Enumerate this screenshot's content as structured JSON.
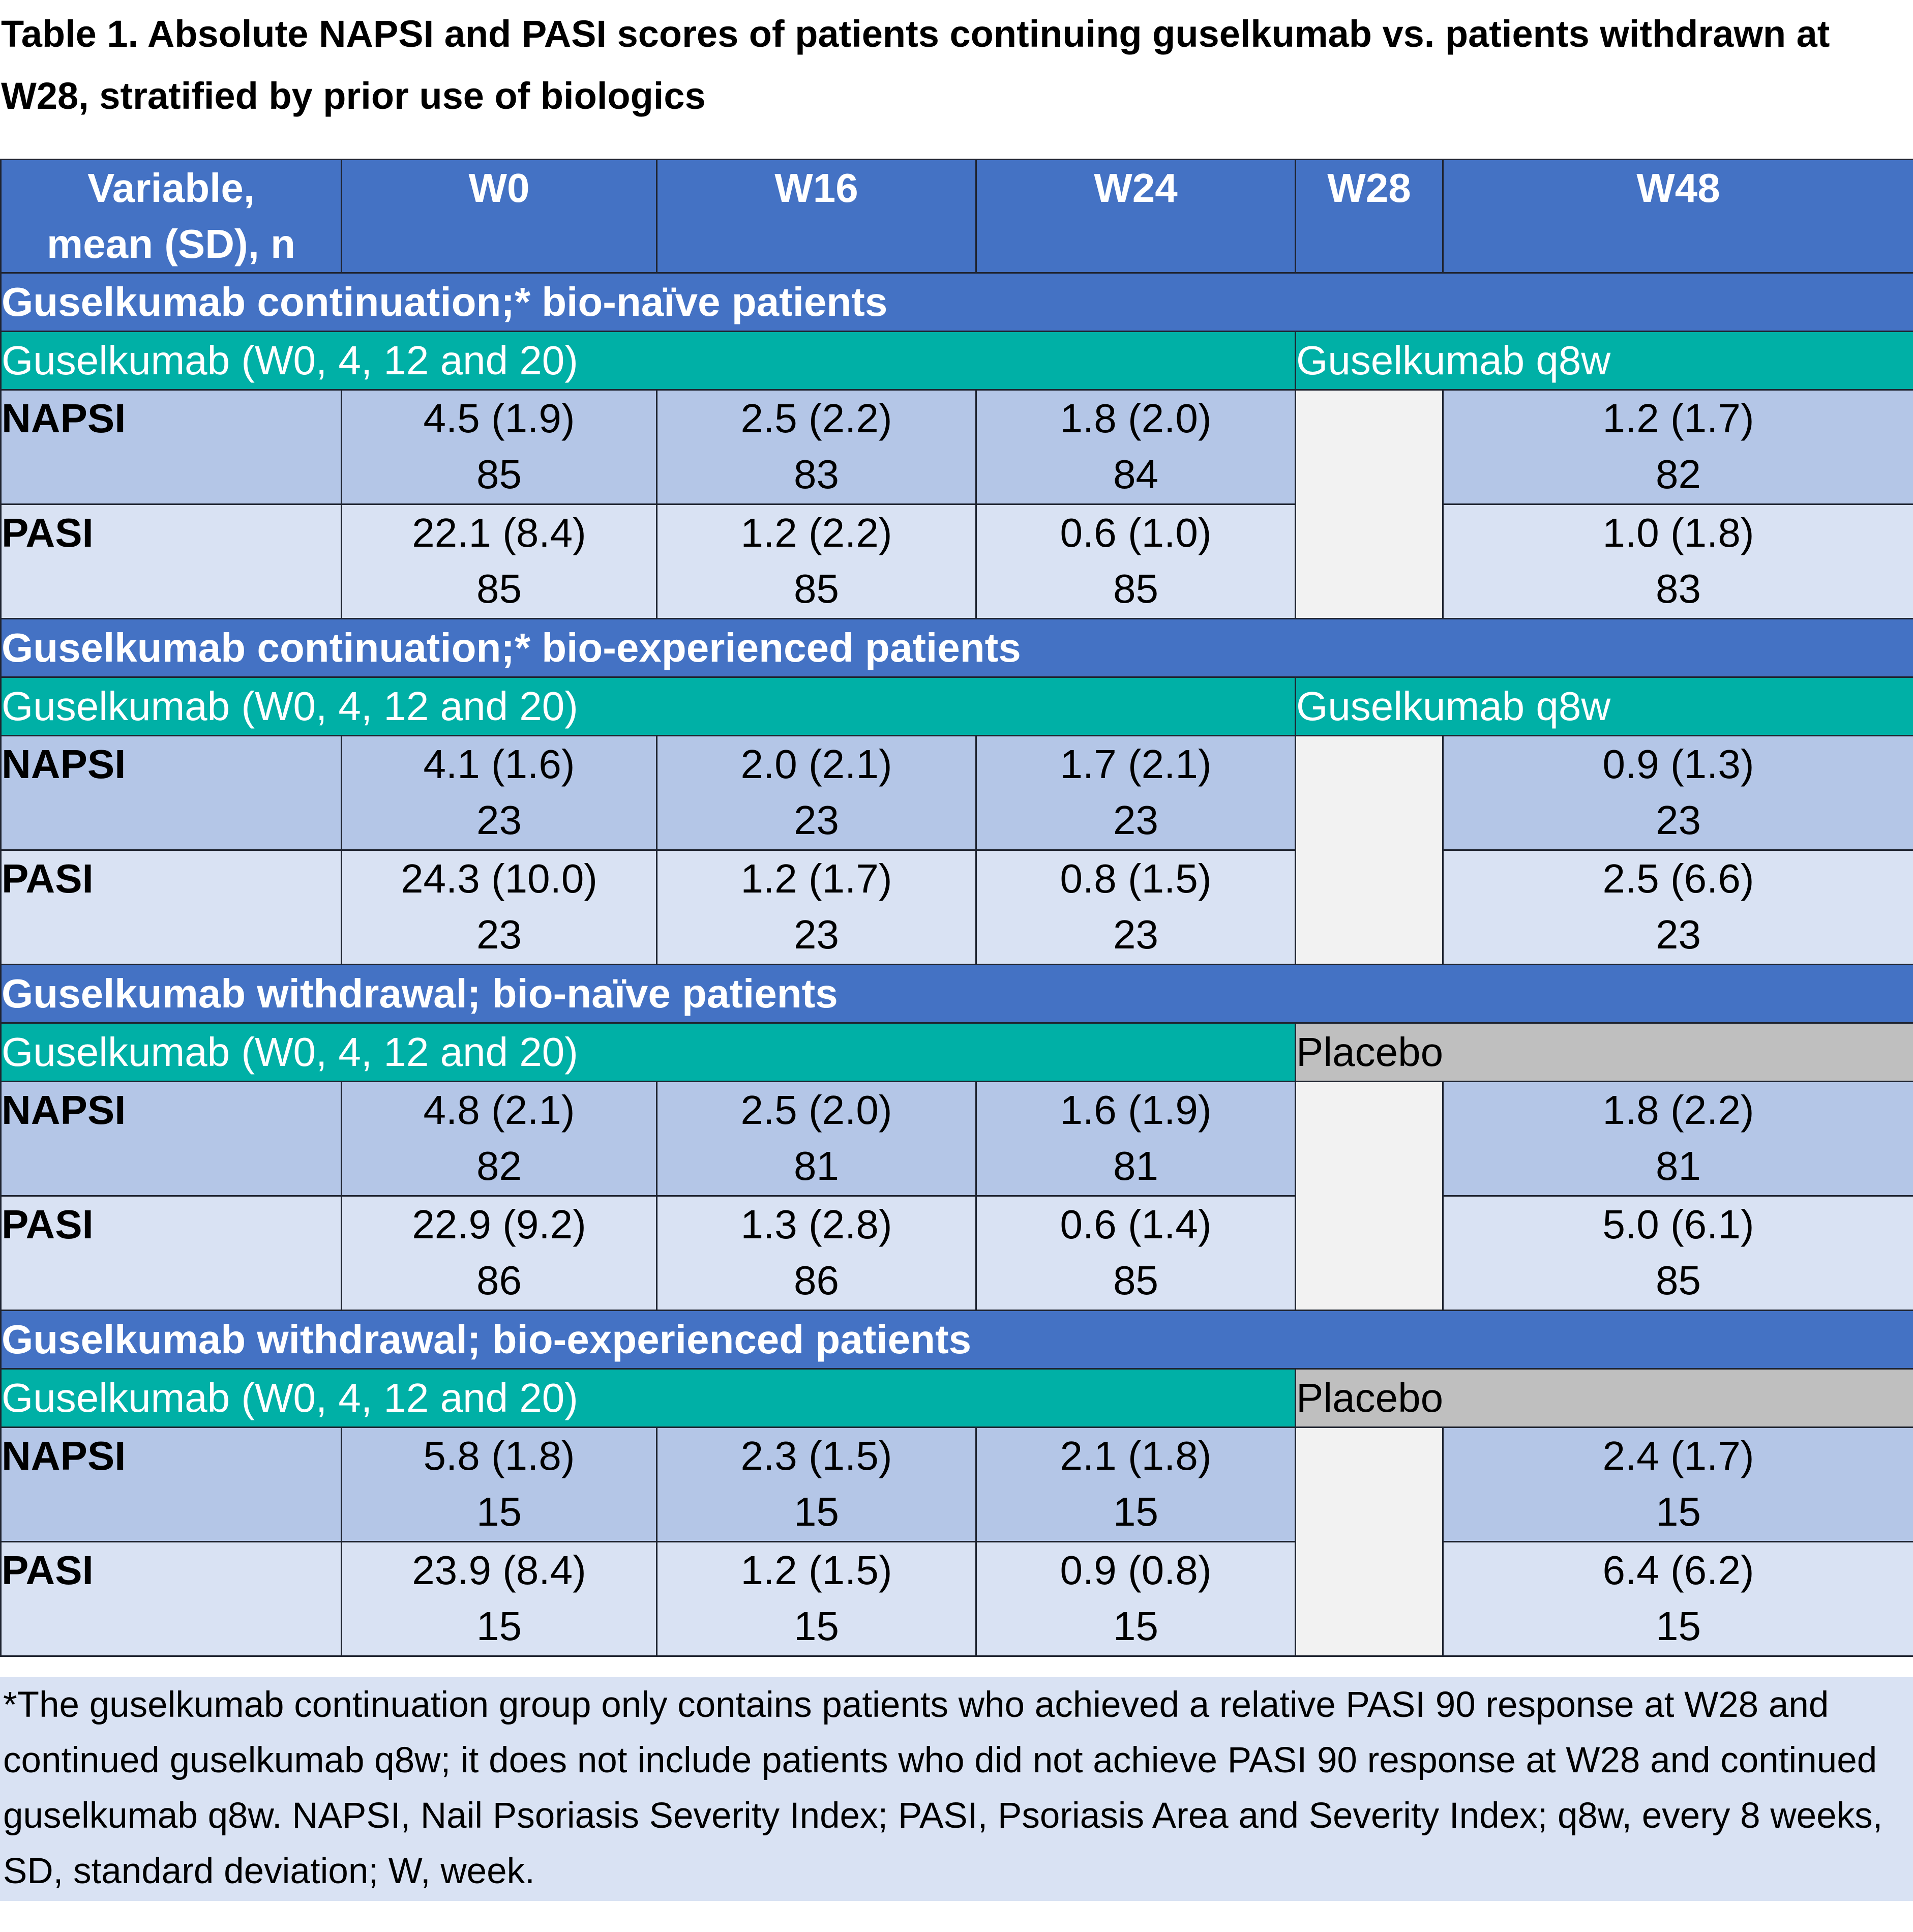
{
  "title": "Table 1. Absolute NAPSI and PASI scores of patients continuing guselkumab vs. patients withdrawn at W28, stratified by prior use of biologics",
  "columns": {
    "variable": [
      "Variable,",
      "mean (SD), n"
    ],
    "w0": "W0",
    "w16": "W16",
    "w24": "W24",
    "w28": "W28",
    "w48": "W48"
  },
  "sections": [
    {
      "header": "Guselkumab continuation;* bio-naïve patients",
      "treatment_left": "Guselkumab (W0, 4, 12 and 20)",
      "treatment_right": "Guselkumab q8w",
      "rows": [
        {
          "label": "NAPSI",
          "w0": [
            "4.5 (1.9)",
            "85"
          ],
          "w16": [
            "2.5 (2.2)",
            "83"
          ],
          "w24": [
            "1.8 (2.0)",
            "84"
          ],
          "w48": [
            "1.2 (1.7)",
            "82"
          ]
        },
        {
          "label": "PASI",
          "w0": [
            "22.1 (8.4)",
            "85"
          ],
          "w16": [
            "1.2 (2.2)",
            "85"
          ],
          "w24": [
            "0.6 (1.0)",
            "85"
          ],
          "w48": [
            "1.0 (1.8)",
            "83"
          ]
        }
      ]
    },
    {
      "header": "Guselkumab continuation;* bio-experienced patients",
      "treatment_left": "Guselkumab (W0, 4, 12 and 20)",
      "treatment_right": "Guselkumab q8w",
      "rows": [
        {
          "label": "NAPSI",
          "w0": [
            "4.1 (1.6)",
            "23"
          ],
          "w16": [
            "2.0 (2.1)",
            "23"
          ],
          "w24": [
            "1.7 (2.1)",
            "23"
          ],
          "w48": [
            "0.9 (1.3)",
            "23"
          ]
        },
        {
          "label": "PASI",
          "w0": [
            "24.3 (10.0)",
            "23"
          ],
          "w16": [
            "1.2 (1.7)",
            "23"
          ],
          "w24": [
            "0.8 (1.5)",
            "23"
          ],
          "w48": [
            "2.5 (6.6)",
            "23"
          ]
        }
      ]
    },
    {
      "header": "Guselkumab withdrawal; bio-naïve patients",
      "treatment_left": "Guselkumab (W0, 4, 12 and 20)",
      "treatment_right": "Placebo",
      "rows": [
        {
          "label": "NAPSI",
          "w0": [
            "4.8 (2.1)",
            "82"
          ],
          "w16": [
            "2.5 (2.0)",
            "81"
          ],
          "w24": [
            "1.6 (1.9)",
            "81"
          ],
          "w48": [
            "1.8 (2.2)",
            "81"
          ]
        },
        {
          "label": "PASI",
          "w0": [
            "22.9 (9.2)",
            "86"
          ],
          "w16": [
            "1.3 (2.8)",
            "86"
          ],
          "w24": [
            "0.6 (1.4)",
            "85"
          ],
          "w48": [
            "5.0 (6.1)",
            "85"
          ]
        }
      ]
    },
    {
      "header": "Guselkumab withdrawal; bio-experienced patients",
      "treatment_left": "Guselkumab (W0, 4, 12 and 20)",
      "treatment_right": "Placebo",
      "rows": [
        {
          "label": "NAPSI",
          "w0": [
            "5.8 (1.8)",
            "15"
          ],
          "w16": [
            "2.3 (1.5)",
            "15"
          ],
          "w24": [
            "2.1 (1.8)",
            "15"
          ],
          "w48": [
            "2.4 (1.7)",
            "15"
          ]
        },
        {
          "label": "PASI",
          "w0": [
            "23.9 (8.4)",
            "15"
          ],
          "w16": [
            "1.2 (1.5)",
            "15"
          ],
          "w24": [
            "0.9 (0.8)",
            "15"
          ],
          "w48": [
            "6.4 (6.2)",
            "15"
          ]
        }
      ]
    }
  ],
  "footnote": "*The guselkumab continuation group only contains patients who achieved a relative PASI 90 response at W28 and continued guselkumab q8w; it does not include patients who did not achieve PASI 90 response at W28 and continued guselkumab q8w. NAPSI, Nail Psoriasis Severity Index; PASI, Psoriasis Area and Severity Index; q8w, every 8 weeks, SD, standard deviation; W, week.",
  "colors": {
    "header_blue": "#4472c4",
    "treatment_teal": "#00b0a6",
    "placebo_gray": "#bfbfbf",
    "row_dark": "#b4c6e7",
    "row_light": "#d9e2f3",
    "blank_cell": "#f2f2f2"
  }
}
